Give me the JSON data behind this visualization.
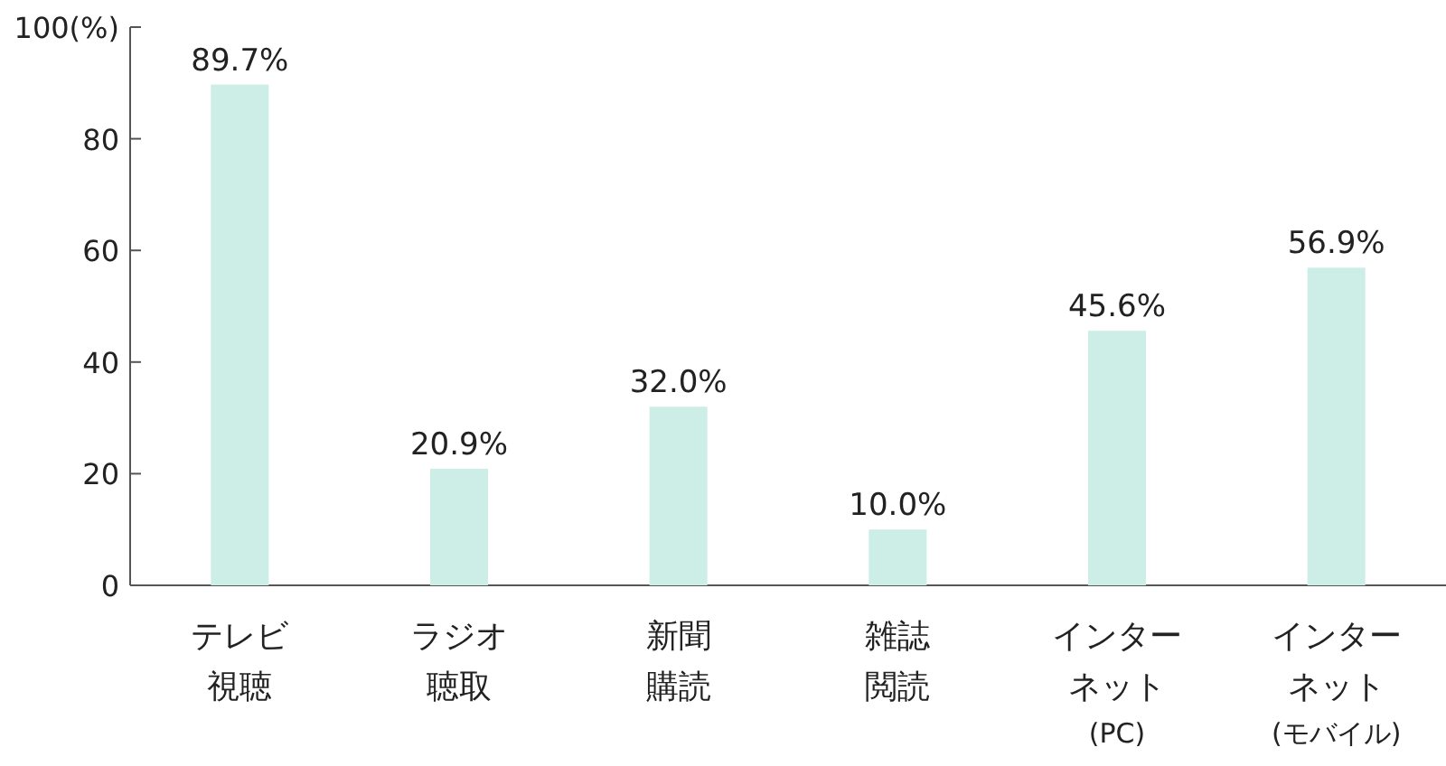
{
  "chart_data": {
    "type": "bar",
    "categories": [
      "テレビ視聴",
      "ラジオ聴取",
      "新聞購読",
      "雑誌閲読",
      "インターネット(PC)",
      "インターネット(モバイル)"
    ],
    "values": [
      89.7,
      20.9,
      32.0,
      10.0,
      45.6,
      56.9
    ],
    "value_labels": [
      "89.7%",
      "20.9%",
      "32.0%",
      "10.0%",
      "45.6%",
      "56.9%"
    ],
    "color": "#cdeee6",
    "ylim": [
      0,
      100
    ],
    "yticks": [
      0,
      20,
      40,
      60,
      80,
      {
        "value": 100,
        "label": "100(%)"
      }
    ],
    "grid": false
  }
}
